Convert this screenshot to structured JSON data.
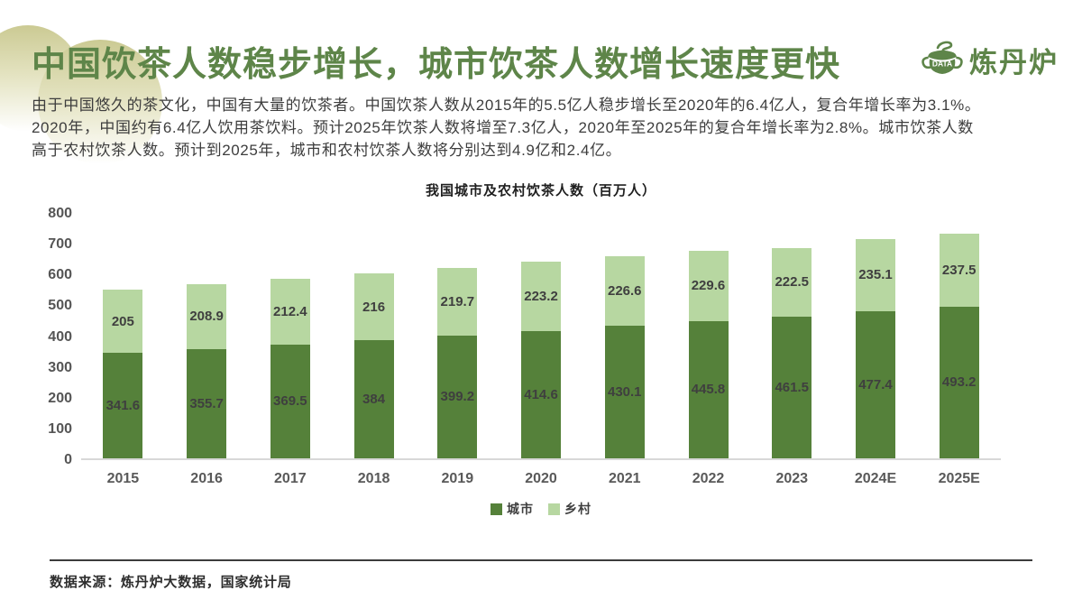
{
  "header": {
    "title": "中国饮茶人数稳步增长，城市饮茶人数增长速度更快",
    "logo_text": "炼丹炉",
    "logo_icon_label": "DATA"
  },
  "intro": {
    "lines": [
      "由于中国悠久的茶文化，中国有大量的饮茶者。中国饮茶人数从2015年的5.5亿人稳步增长至2020年的6.4亿人，复合年增长率为3.1%。",
      "2020年，中国约有6.4亿人饮用茶饮料。预计2025年饮茶人数将增至7.3亿人，2020年至2025年的复合年增长率为2.8%。城市饮茶人数",
      "高于农村饮茶人数。预计到2025年，城市和农村饮茶人数将分别达到4.9亿和2.4亿。"
    ]
  },
  "chart_data": {
    "type": "bar",
    "stacked": true,
    "title": "我国城市及农村饮茶人数（百万人）",
    "categories": [
      "2015",
      "2016",
      "2017",
      "2018",
      "2019",
      "2020",
      "2021",
      "2022",
      "2023",
      "2024E",
      "2025E"
    ],
    "series": [
      {
        "name": "城市",
        "color": "#55813a",
        "values": [
          341.6,
          355.7,
          369.5,
          384,
          399.2,
          414.6,
          430.1,
          445.8,
          461.5,
          477.4,
          493.2
        ]
      },
      {
        "name": "乡村",
        "color": "#b7d7a1",
        "values": [
          205,
          208.9,
          212.4,
          216,
          219.7,
          223.2,
          226.6,
          229.6,
          222.5,
          235.1,
          237.5
        ]
      }
    ],
    "ylim": [
      0,
      800
    ],
    "yticks": [
      0,
      100,
      200,
      300,
      400,
      500,
      600,
      700,
      800
    ],
    "grid": false,
    "legend_position": "bottom"
  },
  "footer": {
    "source": "数据来源：炼丹炉大数据，国家统计局"
  },
  "colors": {
    "accent_green": "#5e8549",
    "city_bar": "#55813a",
    "village_bar": "#b7d7a1",
    "cloud_top": "#cbca93",
    "axis_text": "#595959",
    "body_text": "#3d3d3d"
  }
}
